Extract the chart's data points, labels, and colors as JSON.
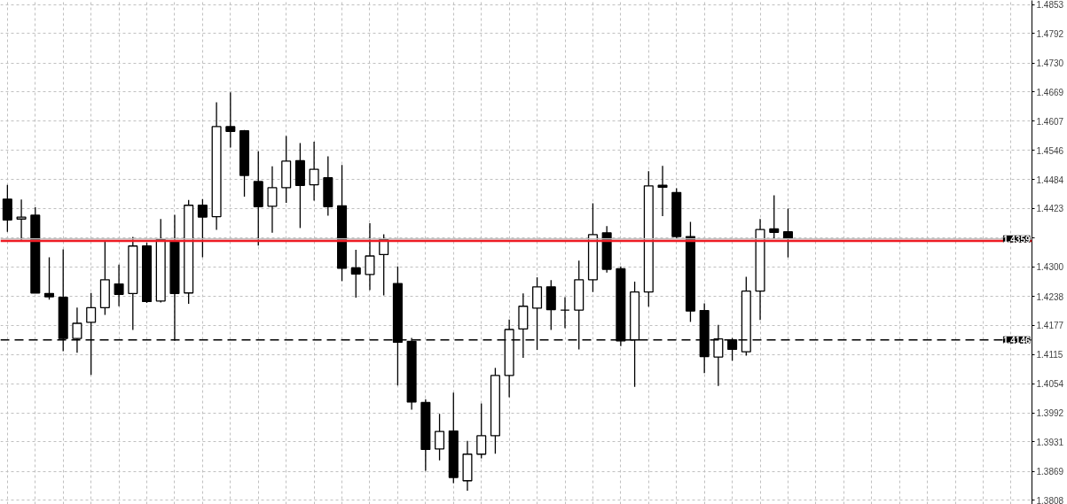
{
  "chart_data": {
    "type": "candlestick",
    "categories": [
      null,
      null,
      null,
      null,
      null,
      null,
      null,
      null,
      null,
      null,
      null,
      null,
      null,
      null,
      null,
      null,
      null,
      null,
      null,
      null,
      null,
      null,
      null,
      null,
      null,
      null,
      null,
      null,
      null,
      null,
      null,
      null,
      null,
      null,
      null,
      null,
      null,
      null,
      null,
      null,
      null,
      null,
      null,
      null,
      null,
      null,
      null,
      null,
      null,
      null,
      null,
      null,
      null,
      null,
      null,
      null,
      null,
      null,
      null,
      null,
      null,
      null,
      null,
      null,
      null,
      null,
      null,
      null,
      null,
      null,
      null,
      null,
      null,
      null
    ],
    "ohlc": [
      [
        1.4443,
        1.4473,
        1.4374,
        1.4399
      ],
      [
        1.4401,
        1.4442,
        1.4354,
        1.4405
      ],
      [
        1.4409,
        1.4426,
        1.4245,
        1.4245
      ],
      [
        1.4244,
        1.432,
        1.4231,
        1.4237
      ],
      [
        1.4236,
        1.4337,
        1.4122,
        1.4149
      ],
      [
        1.4149,
        1.4214,
        1.4119,
        1.4181
      ],
      [
        1.4183,
        1.4245,
        1.4072,
        1.4214
      ],
      [
        1.4214,
        1.4356,
        1.4199,
        1.4273
      ],
      [
        1.4264,
        1.4305,
        1.4217,
        1.4242
      ],
      [
        1.4244,
        1.4363,
        1.4167,
        1.4344
      ],
      [
        1.4344,
        1.4351,
        1.4224,
        1.4227
      ],
      [
        1.4228,
        1.4401,
        1.4225,
        1.4358
      ],
      [
        1.4354,
        1.441,
        1.4144,
        1.4244
      ],
      [
        1.4245,
        1.4441,
        1.4222,
        1.443
      ],
      [
        1.443,
        1.4443,
        1.432,
        1.4405
      ],
      [
        1.4406,
        1.4647,
        1.4378,
        1.4596
      ],
      [
        1.4596,
        1.4668,
        1.4552,
        1.4586
      ],
      [
        1.4587,
        1.4589,
        1.4448,
        1.4493
      ],
      [
        1.448,
        1.4544,
        1.4345,
        1.4427
      ],
      [
        1.4428,
        1.4512,
        1.4372,
        1.4467
      ],
      [
        1.4467,
        1.4576,
        1.4435,
        1.4523
      ],
      [
        1.4524,
        1.4561,
        1.4382,
        1.4472
      ],
      [
        1.4473,
        1.4564,
        1.444,
        1.4506
      ],
      [
        1.4488,
        1.4533,
        1.4408,
        1.4427
      ],
      [
        1.4429,
        1.4515,
        1.427,
        1.4297
      ],
      [
        1.4298,
        1.4336,
        1.4235,
        1.4285
      ],
      [
        1.4284,
        1.4392,
        1.4251,
        1.4323
      ],
      [
        1.4326,
        1.4369,
        1.424,
        1.4358
      ],
      [
        1.4265,
        1.4301,
        1.405,
        1.4141
      ],
      [
        1.4143,
        1.415,
        1.3999,
        1.4015
      ],
      [
        1.4014,
        1.4021,
        1.387,
        1.3915
      ],
      [
        1.3916,
        1.399,
        1.3892,
        1.3953
      ],
      [
        1.3954,
        1.4035,
        1.3844,
        1.3856
      ],
      [
        1.3849,
        1.3933,
        1.3828,
        1.3905
      ],
      [
        1.3905,
        1.4012,
        1.3896,
        1.3944
      ],
      [
        1.3944,
        1.4087,
        1.3906,
        1.4071
      ],
      [
        1.4071,
        1.4189,
        1.4025,
        1.4168
      ],
      [
        1.4169,
        1.4244,
        1.4108,
        1.4217
      ],
      [
        1.4213,
        1.4278,
        1.4125,
        1.4258
      ],
      [
        1.4258,
        1.4272,
        1.4167,
        1.421
      ],
      [
        1.4209,
        1.4236,
        1.4171,
        1.4209
      ],
      [
        1.4209,
        1.4313,
        1.4126,
        1.4273
      ],
      [
        1.4273,
        1.4434,
        1.4247,
        1.4368
      ],
      [
        1.4372,
        1.4386,
        1.4288,
        1.4295
      ],
      [
        1.4296,
        1.4301,
        1.4133,
        1.4144
      ],
      [
        1.4146,
        1.4269,
        1.4047,
        1.4247
      ],
      [
        1.4247,
        1.4502,
        1.4216,
        1.4471
      ],
      [
        1.4472,
        1.4513,
        1.4407,
        1.4468
      ],
      [
        1.4457,
        1.4466,
        1.4361,
        1.4364
      ],
      [
        1.4364,
        1.4395,
        1.4184,
        1.4207
      ],
      [
        1.4208,
        1.4223,
        1.4076,
        1.4111
      ],
      [
        1.411,
        1.4178,
        1.4049,
        1.4148
      ],
      [
        1.4146,
        1.415,
        1.4102,
        1.4126
      ],
      [
        1.4121,
        1.4279,
        1.4113,
        1.4249
      ],
      [
        1.4249,
        1.4401,
        1.4188,
        1.4379
      ],
      [
        1.438,
        1.4451,
        1.4359,
        1.4373
      ],
      [
        1.4374,
        1.4423,
        1.432,
        1.4361
      ],
      null,
      null,
      null,
      null,
      null,
      null,
      null,
      null,
      null,
      null,
      null,
      null,
      null,
      null,
      null,
      null,
      null
    ],
    "colors": [
      "#000000",
      "#ffffff",
      "#000000",
      "#000000",
      "#000000",
      "#ffffff",
      "#ffffff",
      "#ffffff",
      "#000000",
      "#ffffff",
      "#000000",
      "#ffffff",
      "#000000",
      "#ffffff",
      "#000000",
      "#ffffff",
      "#000000",
      "#000000",
      "#000000",
      "#ffffff",
      "#ffffff",
      "#000000",
      "#ffffff",
      "#000000",
      "#000000",
      "#000000",
      "#ffffff",
      "#ffffff",
      "#000000",
      "#000000",
      "#000000",
      "#ffffff",
      "#000000",
      "#ffffff",
      "#ffffff",
      "#ffffff",
      "#ffffff",
      "#ffffff",
      "#ffffff",
      "#000000",
      "#000000",
      "#ffffff",
      "#ffffff",
      "#000000",
      "#000000",
      "#ffffff",
      "#ffffff",
      "#000000",
      "#000000",
      "#000000",
      "#000000",
      "#ffffff",
      "#000000",
      "#ffffff",
      "#ffffff",
      "#000000",
      "#000000",
      null,
      null,
      null,
      null,
      null,
      null,
      null,
      null,
      null,
      null,
      null,
      null,
      null,
      null,
      null,
      null,
      null
    ],
    "ylim": [
      1.3799,
      1.4862
    ],
    "yticks": [
      1.4853,
      1.4792,
      {
        "value": 1.473,
        "label": "1.4730"
      },
      1.4669,
      1.4607,
      1.4546,
      1.4484,
      1.4423,
      {
        "value": 1.4361,
        "label": null
      },
      {
        "value": 1.43,
        "label": "1.4300"
      },
      1.4238,
      1.4177,
      1.4115,
      1.4054,
      1.3992,
      1.3931,
      1.3869,
      1.3808
    ],
    "grid": true,
    "tick_labels": "y",
    "ref_lines": [
      {
        "axis": "y",
        "value": 1.4359,
        "label": "1.4359",
        "color": "#c0c0c0"
      },
      {
        "axis": "y",
        "value": 1.4146,
        "label": "1.4146",
        "color": "#000000",
        "line_style": "dashed"
      },
      {
        "axis": "y",
        "value": 1.4355,
        "color": "#ee1c24"
      }
    ]
  }
}
